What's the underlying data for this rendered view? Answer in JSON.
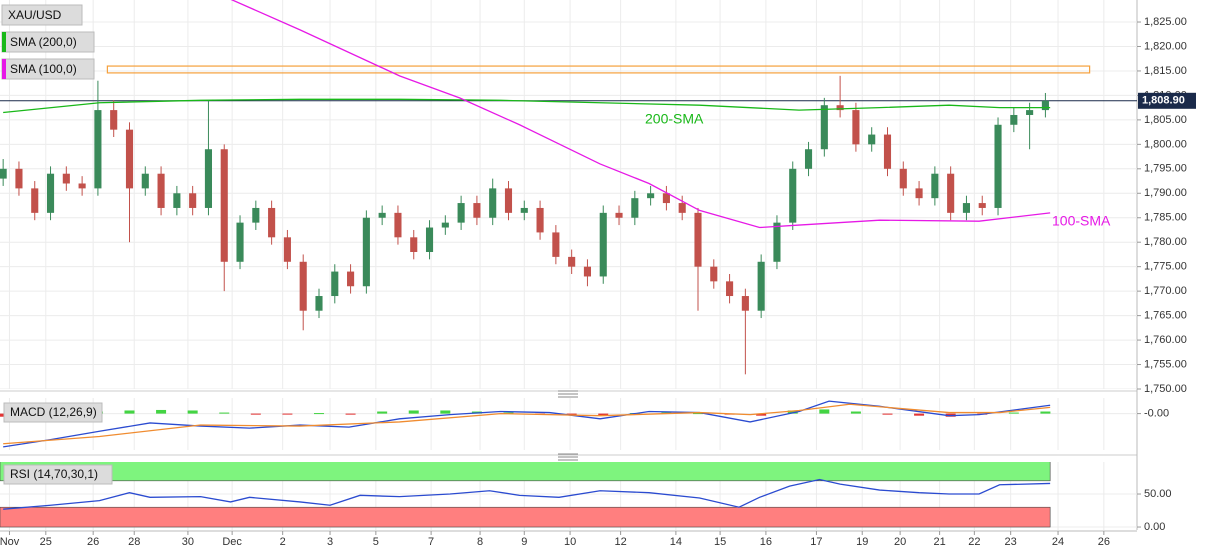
{
  "chart_data": [
    {
      "type": "candlestick",
      "title": "XAU/USD",
      "open": [
        1793,
        1795,
        1791,
        1786,
        1794,
        1792,
        1791,
        1807,
        1803,
        1791,
        1794,
        1787,
        1790,
        1787,
        1799,
        1776,
        1784,
        1787,
        1781,
        1776,
        1766,
        1769,
        1774,
        1771,
        1785,
        1786,
        1781,
        1778,
        1783,
        1784,
        1788,
        1785,
        1791,
        1786,
        1787,
        1782,
        1777,
        1775,
        1773,
        1786,
        1785,
        1789,
        1790,
        1788,
        1786,
        1775,
        1772,
        1769,
        1766,
        1776,
        1784,
        1795,
        1799,
        1808,
        1807,
        1800,
        1802,
        1795,
        1791,
        1789,
        1794,
        1786,
        1788,
        1787,
        1804,
        1806,
        1807
      ],
      "high": [
        1797,
        1796.5,
        1792.5,
        1795.5,
        1795.5,
        1793.5,
        1813,
        1809,
        1804.5,
        1795.5,
        1795.5,
        1791.5,
        1791.5,
        1809,
        1800,
        1785.5,
        1788.5,
        1788.5,
        1782.5,
        1777.5,
        1770.5,
        1775.5,
        1775.5,
        1786.5,
        1787.5,
        1787.5,
        1782.5,
        1784.5,
        1785.5,
        1789.5,
        1789.5,
        1793,
        1792.5,
        1788.5,
        1788.5,
        1783.5,
        1778.5,
        1776.5,
        1787.5,
        1787.5,
        1790.5,
        1791.5,
        1791.5,
        1789.5,
        1787,
        1776.5,
        1773.5,
        1770.5,
        1777.5,
        1785.5,
        1796.5,
        1800.5,
        1809.5,
        1814,
        1808.5,
        1803.5,
        1803.5,
        1796.5,
        1792.5,
        1795.5,
        1795.5,
        1789.5,
        1789.5,
        1805.5,
        1807.5,
        1808.5,
        1810.5
      ],
      "low": [
        1791.5,
        1789.5,
        1784.5,
        1784.5,
        1790.5,
        1789.5,
        1789.5,
        1801.5,
        1780,
        1789.5,
        1785.5,
        1785.5,
        1785.5,
        1785.5,
        1770,
        1774.5,
        1782.5,
        1779.5,
        1774.5,
        1762,
        1764.5,
        1767.5,
        1769.5,
        1769.5,
        1783.5,
        1779.5,
        1776.5,
        1776.5,
        1781.5,
        1782.5,
        1783.5,
        1783.5,
        1784.5,
        1784.5,
        1780.5,
        1775.5,
        1773.5,
        1771,
        1771.5,
        1783.5,
        1783.5,
        1787.5,
        1786.5,
        1784.5,
        1766,
        1770.5,
        1767.5,
        1753,
        1764.5,
        1774.5,
        1782.5,
        1793.5,
        1797.5,
        1805.5,
        1798.5,
        1798.5,
        1793.5,
        1789.5,
        1787.5,
        1787.5,
        1784.5,
        1784.5,
        1785.5,
        1785.5,
        1802.5,
        1799,
        1805.5
      ],
      "close": [
        1795,
        1791,
        1786,
        1794,
        1792,
        1791,
        1807,
        1803,
        1791,
        1794,
        1787,
        1790,
        1787,
        1799,
        1776,
        1784,
        1787,
        1781,
        1776,
        1766,
        1769,
        1774,
        1771,
        1785,
        1786,
        1781,
        1778,
        1783,
        1784,
        1788,
        1785,
        1791,
        1786,
        1787,
        1782,
        1777,
        1775,
        1773,
        1786,
        1785,
        1789,
        1790,
        1788,
        1786,
        1775,
        1772,
        1769,
        1766,
        1776,
        1784,
        1795,
        1799,
        1808,
        1807,
        1800,
        1802,
        1795,
        1791,
        1789,
        1794,
        1786,
        1788,
        1787,
        1804,
        1806,
        1807,
        1808.9
      ],
      "up_color": "#3a8a5a",
      "down_color": "#c2514b",
      "lines": [
        {
          "name": "SMA (200,0)",
          "label": "200-SMA",
          "color": "#19b819",
          "x": [
            0,
            6.1,
            12.5,
            18.8,
            25.1,
            31.5,
            37.8,
            44.1,
            50.4,
            55.5,
            59.9,
            63.1,
            66.3
          ],
          "values": [
            1806.5,
            1808.5,
            1809,
            1809.2,
            1809.2,
            1809,
            1808.5,
            1808,
            1807,
            1807.5,
            1808,
            1807.5,
            1807.5
          ]
        },
        {
          "name": "SMA (100,0)",
          "label": "100-SMA",
          "color": "#e619e6",
          "x": [
            14.3,
            18.8,
            25.1,
            28.9,
            32.7,
            37.8,
            40.9,
            44.1,
            47.9,
            50.4,
            55.5,
            61.8,
            66.3
          ],
          "values": [
            1829.8,
            1823.4,
            1814,
            1809.5,
            1804,
            1796,
            1792,
            1786.5,
            1783,
            1783.5,
            1784.5,
            1784.3,
            1786
          ]
        }
      ],
      "zone": {
        "x": [
          6.6,
          68.8
        ],
        "y": [
          1814.6,
          1816
        ],
        "color": "#f5a03c"
      },
      "last_price": {
        "value": 1808.9,
        "label": "1,808.90"
      },
      "xlim": [
        -0.2,
        71.8
      ],
      "xticks": [
        {
          "value": 0.4,
          "label": "Nov"
        },
        {
          "value": 2.7,
          "label": "25"
        },
        {
          "value": 5.7,
          "label": "26"
        },
        {
          "value": 8.3,
          "label": "28"
        },
        {
          "value": 11.7,
          "label": "30"
        },
        {
          "value": 14.5,
          "label": "Dec"
        },
        {
          "value": 17.7,
          "label": "2"
        },
        {
          "value": 20.7,
          "label": "3"
        },
        {
          "value": 23.6,
          "label": "5"
        },
        {
          "value": 27.1,
          "label": "7"
        },
        {
          "value": 30.2,
          "label": "8"
        },
        {
          "value": 33,
          "label": "9"
        },
        {
          "value": 35.9,
          "label": "10"
        },
        {
          "value": 39.1,
          "label": "12"
        },
        {
          "value": 42.6,
          "label": "14"
        },
        {
          "value": 45.4,
          "label": "15"
        },
        {
          "value": 48.3,
          "label": "16"
        },
        {
          "value": 51.5,
          "label": "17"
        },
        {
          "value": 54.4,
          "label": "19"
        },
        {
          "value": 56.8,
          "label": "20"
        },
        {
          "value": 59.3,
          "label": "21"
        },
        {
          "value": 61.5,
          "label": "22"
        },
        {
          "value": 63.8,
          "label": "23"
        },
        {
          "value": 66.8,
          "label": "24"
        },
        {
          "value": 69.7,
          "label": "26"
        }
      ],
      "ylim": [
        1750,
        1829.5
      ],
      "yticks": [
        {
          "value": 1750,
          "label": "1,750.00"
        },
        {
          "value": 1755,
          "label": "1,755.00"
        },
        {
          "value": 1760,
          "label": "1,760.00"
        },
        {
          "value": 1765,
          "label": "1,765.00"
        },
        {
          "value": 1770,
          "label": "1,770.00"
        },
        {
          "value": 1775,
          "label": "1,775.00"
        },
        {
          "value": 1780,
          "label": "1,780.00"
        },
        {
          "value": 1785,
          "label": "1,785.00"
        },
        {
          "value": 1790,
          "label": "1,790.00"
        },
        {
          "value": 1795,
          "label": "1,795.00"
        },
        {
          "value": 1800,
          "label": "1,800.00"
        },
        {
          "value": 1805,
          "label": "1,805.00"
        },
        {
          "value": 1810,
          "label": "1,810.00"
        },
        {
          "value": 1815,
          "label": "1,815.00"
        },
        {
          "value": 1820,
          "label": "1,820.00"
        },
        {
          "value": 1825,
          "label": "1,825.00"
        }
      ],
      "grid": true
    },
    {
      "type": "macd",
      "title": "MACD (12,26,9)",
      "series": [
        {
          "name": "MACD",
          "color": "#2b4bd0",
          "x": [
            0,
            3,
            6.1,
            9.3,
            12.5,
            15.6,
            18.8,
            21.9,
            25.1,
            28.3,
            31.5,
            34.6,
            37.8,
            40.9,
            44.1,
            47.3,
            50.4,
            52.3,
            55.5,
            59.9,
            61.8,
            66.3
          ],
          "values": [
            -3.2,
            -2.5,
            -1.7,
            -0.9,
            -1.2,
            -1.4,
            -1.1,
            -1.3,
            -0.5,
            -0.1,
            0.2,
            0.1,
            -0.5,
            0.2,
            0.1,
            -0.8,
            0.2,
            1.2,
            0.7,
            -0.2,
            -0.1,
            0.8
          ]
        },
        {
          "name": "Signal",
          "color": "#f08c30",
          "x": [
            0,
            6.1,
            12.5,
            18.8,
            25.1,
            31.5,
            37.8,
            44.1,
            47.3,
            50.4,
            53.6,
            59.9,
            63.1,
            66.3
          ],
          "values": [
            -2.9,
            -2.2,
            -1.1,
            -1.2,
            -0.8,
            0,
            -0.2,
            0.1,
            -0.1,
            0.3,
            0.9,
            0.1,
            0.1,
            0.6
          ]
        }
      ],
      "histogram": {
        "x": [
          0,
          2,
          4,
          6,
          8,
          10,
          12,
          14,
          16,
          18,
          20,
          22,
          24,
          26,
          28,
          30,
          32,
          34,
          36,
          38,
          40,
          42,
          44,
          46,
          48,
          50,
          52,
          54,
          56,
          58,
          60,
          62,
          64,
          66
        ],
        "values": [
          -0.3,
          -0.2,
          -0.1,
          0.2,
          0.3,
          0.35,
          0.3,
          0.1,
          -0.1,
          -0.05,
          0.05,
          -0.1,
          0.2,
          0.3,
          0.3,
          0.2,
          0.1,
          -0.05,
          -0.1,
          -0.15,
          0.05,
          0.1,
          0.05,
          -0.1,
          -0.2,
          0.3,
          0.4,
          0.2,
          -0.1,
          -0.2,
          -0.3,
          -0.1,
          0.1,
          0.2
        ],
        "pos_color": "#22cc22",
        "neg_color": "#dd1111"
      },
      "ylim": [
        -3.5,
        1.5
      ],
      "yticks": [
        {
          "value": 0,
          "label": "-0.00"
        }
      ],
      "grid": true
    },
    {
      "type": "rsi",
      "title": "RSI (14,70,30,1)",
      "series": [
        {
          "name": "RSI",
          "color": "#2b4bd0",
          "x": [
            0,
            3,
            6.1,
            8,
            9.3,
            12.5,
            14.4,
            15.6,
            18.8,
            20.7,
            22.6,
            25.1,
            28.3,
            30.8,
            32.7,
            35.2,
            37.8,
            40.9,
            44.1,
            46.6,
            47.9,
            49.8,
            51.7,
            53,
            55.5,
            58,
            59.9,
            61.8,
            63.1,
            66.3
          ],
          "values": [
            27,
            33,
            40,
            52,
            45,
            46,
            38,
            45,
            38,
            33,
            48,
            46,
            50,
            55,
            48,
            45,
            55,
            52,
            44,
            30,
            45,
            62,
            72,
            65,
            56,
            52,
            50,
            50,
            64,
            66
          ]
        }
      ],
      "bands": [
        {
          "range": [
            70,
            100
          ],
          "color": "#7ef47e"
        },
        {
          "range": [
            0,
            30
          ],
          "color": "#ff7f7f"
        }
      ],
      "band_end": 66.3,
      "ylim": [
        -4.5,
        98.5
      ],
      "yticks": [
        {
          "value": 50,
          "label": "50.00"
        },
        {
          "value": 0,
          "label": "0.00"
        }
      ],
      "grid": true
    }
  ]
}
